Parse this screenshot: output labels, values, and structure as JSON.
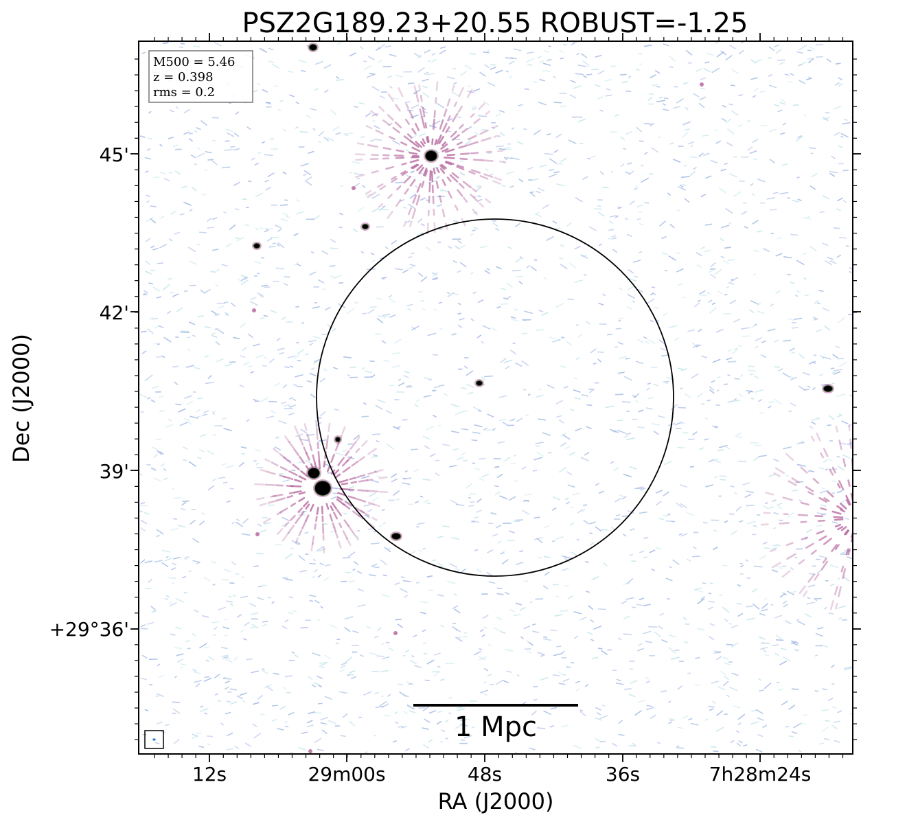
{
  "figure": {
    "title": "PSZ2G189.23+20.55 ROBUST=-1.25",
    "xlabel": "RA (J2000)",
    "ylabel": "Dec (J2000)",
    "x_tick_labels": [
      "12s",
      "29m00s",
      "48s",
      "36s",
      "7h28m24s"
    ],
    "y_tick_labels": [
      "45'",
      "42'",
      "39'",
      "+29°36'"
    ],
    "info_box": {
      "line1": "M500 = 5.46",
      "line2": "z = 0.398",
      "line3": "rms = 0.2"
    },
    "scalebar_label": "1 Mpc",
    "colors": {
      "noise_blue": "#9db4e3",
      "noise_cyan": "#bfe3ea",
      "emission_magenta": "#b35f9a",
      "source_core": "#000000",
      "source_rim": "#2e5a2a"
    }
  }
}
